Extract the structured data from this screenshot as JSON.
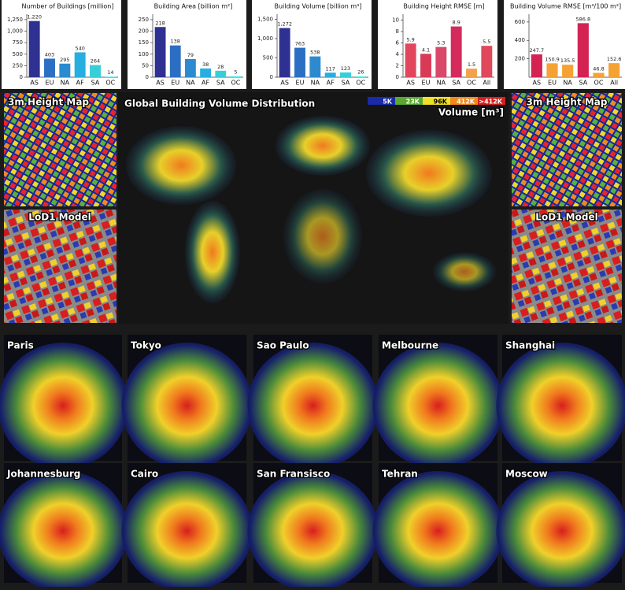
{
  "chart_data": [
    {
      "type": "bar",
      "title": "Number of Buildings [million]",
      "categories": [
        "AS",
        "EU",
        "NA",
        "AF",
        "SA",
        "OC"
      ],
      "values": [
        1220,
        403,
        295,
        540,
        264,
        14
      ],
      "value_labels": [
        "1,220",
        "403",
        "295",
        "540",
        "264",
        "14"
      ],
      "colors": [
        "#2e3192",
        "#2b6fc4",
        "#2c8bcf",
        "#27aee0",
        "#36cfd8",
        "#5cefee"
      ],
      "ylim": [
        0,
        1300
      ],
      "yticks": [
        0,
        250,
        500,
        750,
        {
          "value": 1000,
          "label": "1,000"
        },
        {
          "value": 1250,
          "label": "1,250"
        }
      ]
    },
    {
      "type": "bar",
      "title": "Building Area [billion m²]",
      "categories": [
        "AS",
        "EU",
        "NA",
        "AF",
        "SA",
        "OC"
      ],
      "values": [
        218,
        138,
        79,
        38,
        28,
        5
      ],
      "colors": [
        "#2e3192",
        "#2b6fc4",
        "#2c8bcf",
        "#27aee0",
        "#36cfd8",
        "#5cefee"
      ],
      "ylim": [
        0,
        260
      ],
      "yticks": [
        0,
        50,
        100,
        150,
        200,
        250
      ]
    },
    {
      "type": "bar",
      "title": "Building Volume [billion m³]",
      "categories": [
        "AS",
        "EU",
        "NA",
        "AF",
        "SA",
        "OC"
      ],
      "values": [
        1272,
        763,
        538,
        117,
        123,
        26
      ],
      "value_labels": [
        "1,272",
        "763",
        "538",
        "117",
        "123",
        "26"
      ],
      "colors": [
        "#2e3192",
        "#2b6fc4",
        "#2c8bcf",
        "#27aee0",
        "#36cfd8",
        "#5cefee"
      ],
      "ylim": [
        0,
        1550
      ],
      "yticks": [
        0,
        500,
        {
          "value": 1000,
          "label": "1,000"
        },
        {
          "value": 1500,
          "label": "1,500"
        }
      ]
    },
    {
      "type": "bar",
      "title": "Building Height RMSE [m]",
      "categories": [
        "AS",
        "EU",
        "NA",
        "SA",
        "OC",
        "All"
      ],
      "values": [
        5.9,
        4.1,
        5.3,
        8.9,
        1.5,
        5.5
      ],
      "colors": [
        "#e2465c",
        "#d83a58",
        "#d9486a",
        "#d42a5c",
        "#f2a24e",
        "#e0485c"
      ],
      "ylim": [
        0,
        10.5
      ],
      "yticks": [
        0,
        2,
        4,
        6,
        8,
        10
      ]
    },
    {
      "type": "bar",
      "title": "Building Volume RMSE [m³/100 m²]",
      "categories": [
        "AS",
        "EU",
        "NA",
        "SA",
        "OC",
        "All"
      ],
      "values": [
        247.7,
        150.9,
        135.5,
        586.8,
        46.8,
        152.6
      ],
      "colors": [
        "#d42352",
        "#f5a234",
        "#f5a234",
        "#d42352",
        "#f5a234",
        "#f5a234"
      ],
      "ylim": [
        0,
        650
      ],
      "yticks": [
        200,
        400,
        600
      ]
    }
  ],
  "map": {
    "title": "Global Building Volume Distribution",
    "legend": {
      "labels": [
        "5K",
        "23K",
        "96K",
        "412K",
        ">412K"
      ],
      "colors": [
        "#1a2aa8",
        "#5aa832",
        "#f0e02a",
        "#f08a1e",
        "#d81e1e"
      ],
      "title": "Volume [m³]"
    },
    "left_insets": [
      "3m Height Map",
      "LoD1 Model"
    ],
    "right_insets": [
      "3m Height Map",
      "LoD1 Model"
    ]
  },
  "cities": [
    "Paris",
    "Tokyo",
    "Sao Paulo",
    "Melbourne",
    "Shanghai",
    "Johannesburg",
    "Cairo",
    "San Fransisco",
    "Tehran",
    "Moscow"
  ]
}
